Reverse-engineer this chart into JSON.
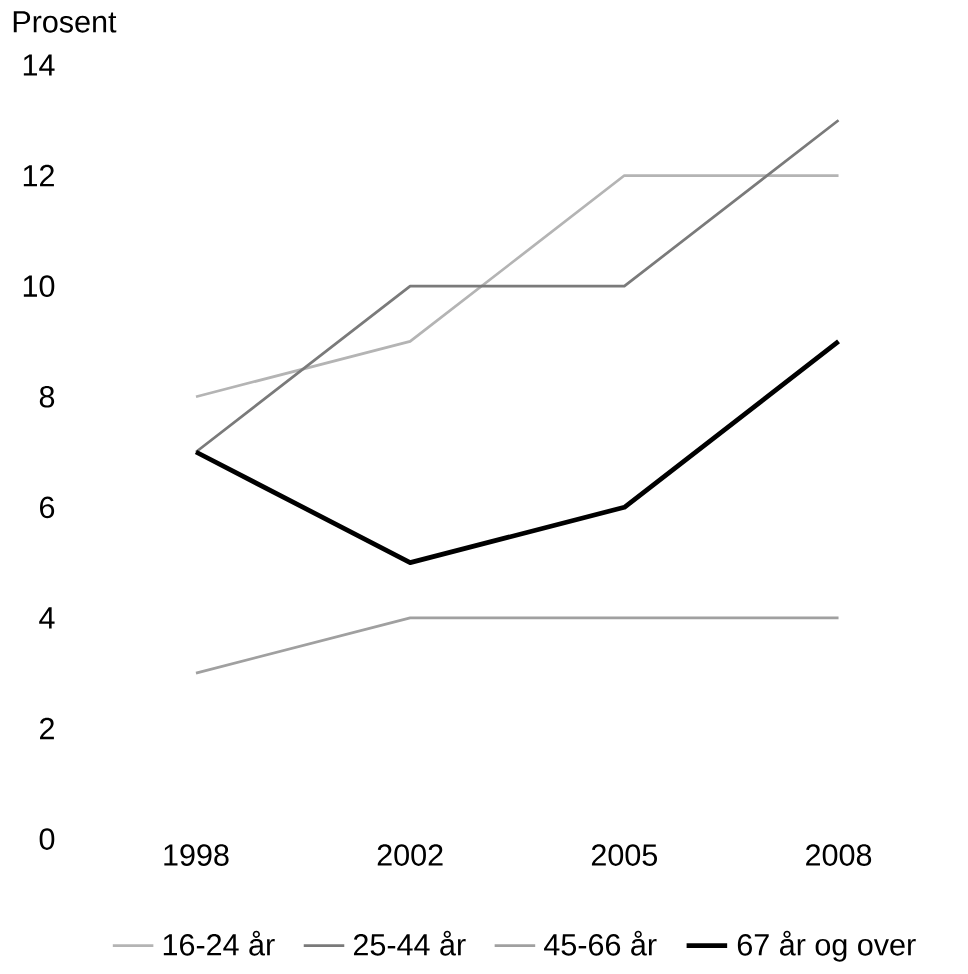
{
  "chart_data": {
    "type": "line",
    "ylabel": "Prosent",
    "categories": [
      "1998",
      "2002",
      "2005",
      "2008"
    ],
    "series": [
      {
        "name": "16-24 år",
        "color": "#b4b4b4",
        "values": [
          8,
          9,
          12,
          12
        ]
      },
      {
        "name": "25-44 år",
        "color": "#7a7a7a",
        "values": [
          7,
          10,
          10,
          13
        ]
      },
      {
        "name": "45-66 år",
        "color": "#a0a0a0",
        "values": [
          3,
          4,
          4,
          4
        ]
      },
      {
        "name": "67 år og over",
        "color": "#000000",
        "values": [
          7,
          5,
          6,
          9
        ]
      }
    ],
    "ylim": [
      0,
      14
    ],
    "yticks": [
      0,
      2,
      4,
      6,
      8,
      10,
      12,
      14
    ],
    "legend": "bottom",
    "marker": "none",
    "line_style": "solid"
  }
}
